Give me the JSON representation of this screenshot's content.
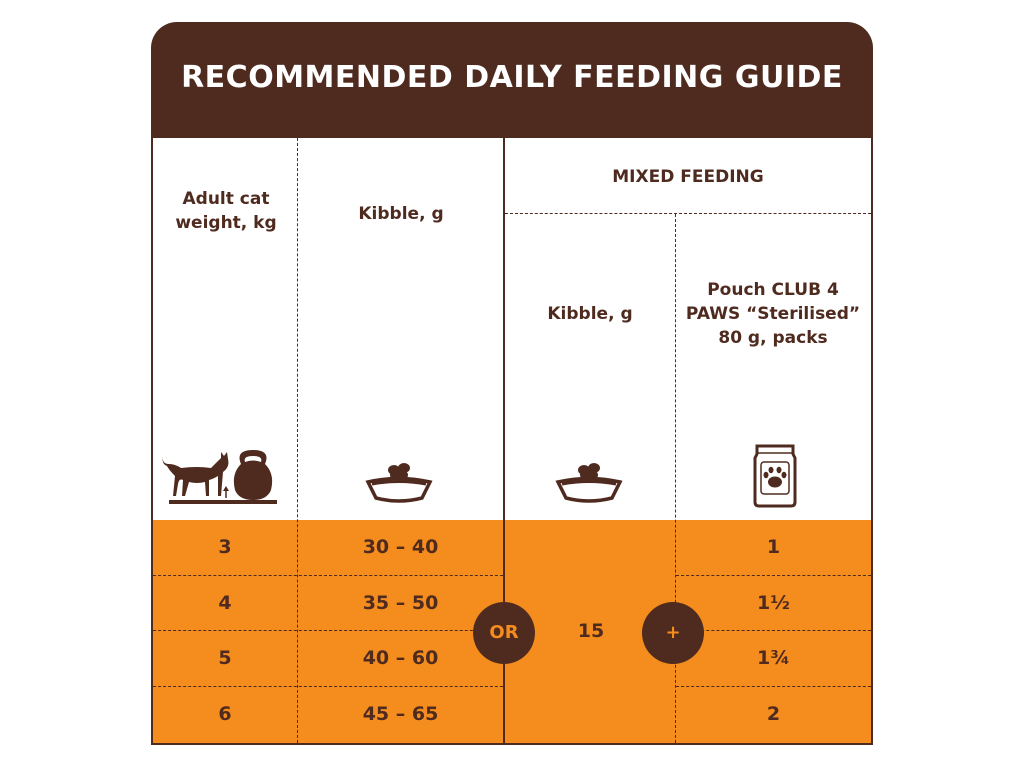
{
  "title": "RECOMMENDED DAILY FEEDING GUIDE",
  "headers": {
    "weight": "Adult cat weight, kg",
    "kibble": "Kibble, g",
    "mixed": "MIXED FEEDING",
    "mixed_kibble": "Kibble, g",
    "pouch": "Pouch CLUB 4 PAWS “Sterilised” 80 g, packs"
  },
  "icons": {
    "weight": "cat-with-kettlebell-icon",
    "kibble": "food-bowl-icon",
    "mixed_kibble": "food-bowl-icon",
    "pouch": "pouch-paw-icon"
  },
  "rows": [
    {
      "weight": "3",
      "kibble": "30 – 40",
      "pouch": "1"
    },
    {
      "weight": "4",
      "kibble": "35 – 50",
      "pouch": "1½"
    },
    {
      "weight": "5",
      "kibble": "40 – 60",
      "pouch": "1¾"
    },
    {
      "weight": "6",
      "kibble": "45 – 65",
      "pouch": "2"
    }
  ],
  "mixed_kibble_value": "15",
  "or_label": "OR",
  "plus_label": "+",
  "colors": {
    "brown": "#4f2b1f",
    "orange": "#f58c1e",
    "white": "#ffffff"
  }
}
